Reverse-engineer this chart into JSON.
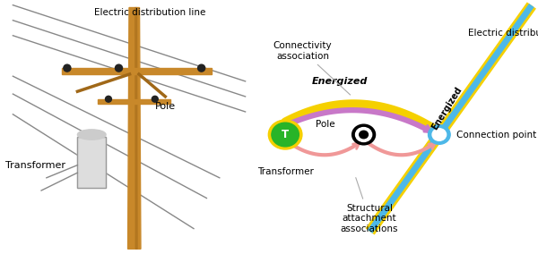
{
  "bg_color": "#ffffff",
  "transformer_color": "#28b428",
  "transformer_label": "T",
  "line_color_blue": "#4db8e8",
  "line_color_yellow": "#f5d000",
  "energized_arc_color_yellow": "#f5d000",
  "energized_arc_color_purple": "#c878c8",
  "structural_arc_color": "#f09898",
  "annotation_line_color": "#aaaaaa",
  "text_energized_bold": "Energized",
  "text_connectivity": "Connectivity\nassociation",
  "text_structural": "Structural\nattachment\nassociations",
  "text_connection_point": "Connection point",
  "text_transformer_label": "Transformer",
  "text_pole_label": "Pole",
  "text_edl_right": "Electric distribution line",
  "text_energized_rotated": "Energized",
  "text_edl_left": "Electric distribution line",
  "text_pole_left": "Pole",
  "text_transformer_left": "Transformer",
  "pole_color": "#c8882a",
  "pole_dark": "#a06818",
  "wire_color": "#888888",
  "insulator_color": "#222222",
  "transformer_box_color": "#cccccc"
}
